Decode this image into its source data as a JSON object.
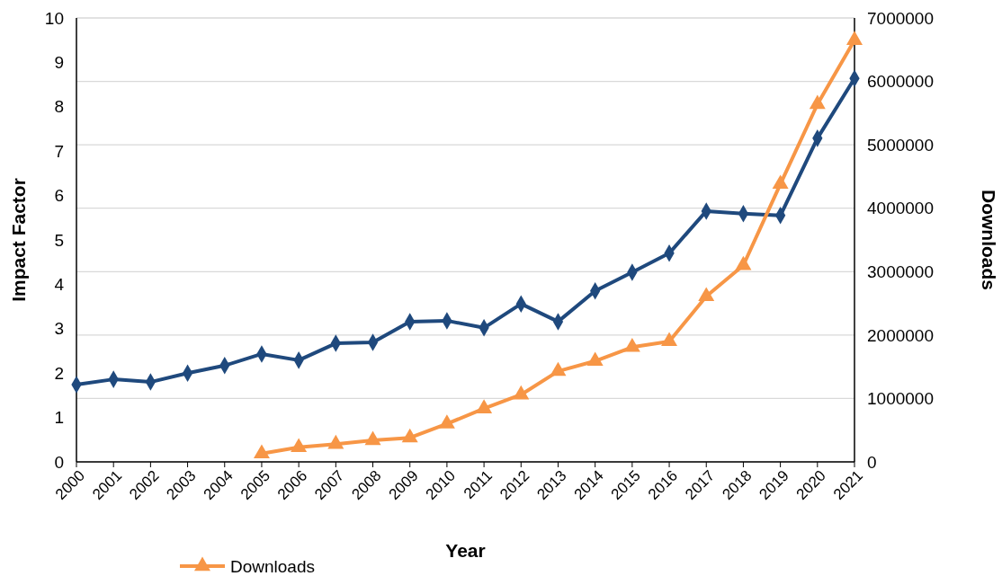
{
  "chart_data": {
    "type": "line",
    "xlabel": "Year",
    "ylabel": "Impact Factor",
    "y2label": "Downloads",
    "categories": [
      "2000",
      "2001",
      "2002",
      "2003",
      "2004",
      "2005",
      "2006",
      "2007",
      "2008",
      "2009",
      "2010",
      "2011",
      "2012",
      "2013",
      "2014",
      "2015",
      "2016",
      "2017",
      "2018",
      "2019",
      "2020",
      "2021"
    ],
    "series": [
      {
        "color": "#1f497d",
        "marker": "diamond",
        "values": [
          1.74,
          1.86,
          1.8,
          2.0,
          2.17,
          2.43,
          2.29,
          2.67,
          2.69,
          3.16,
          3.18,
          3.02,
          3.56,
          3.16,
          3.85,
          4.27,
          4.7,
          5.65,
          5.59,
          5.55,
          7.29,
          8.64
        ]
      },
      {
        "name": "Downloads",
        "color": "#f79646",
        "marker": "triangle",
        "axis": "y2",
        "values": [
          null,
          null,
          null,
          null,
          null,
          130000,
          230000,
          280000,
          340000,
          380000,
          600000,
          840000,
          1060000,
          1430000,
          1590000,
          1810000,
          1900000,
          2610000,
          3100000,
          4380000,
          5640000,
          6650000
        ]
      }
    ],
    "ylim": [
      0,
      10
    ],
    "yticks": [
      0,
      1,
      2,
      3,
      4,
      5,
      6,
      7,
      8,
      9,
      10
    ],
    "y2lim": [
      0,
      7000000
    ],
    "y2ticks": [
      0,
      1000000,
      2000000,
      3000000,
      4000000,
      5000000,
      6000000,
      7000000
    ],
    "grid": "y",
    "legend": "bottom",
    "line_style": "solid"
  }
}
